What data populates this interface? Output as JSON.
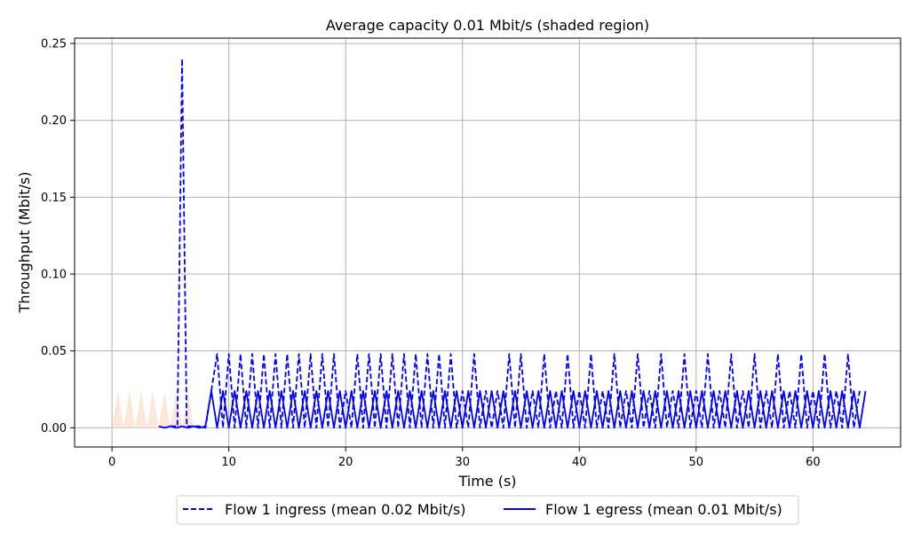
{
  "chart_data": {
    "type": "line",
    "title": "Average capacity 0.01 Mbit/s (shaded region)",
    "xlabel": "Time (s)",
    "ylabel": "Throughput (Mbit/s)",
    "xlim": [
      -3.2,
      67.5
    ],
    "ylim": [
      -0.0125,
      0.2535
    ],
    "xticks": [
      0,
      10,
      20,
      30,
      40,
      50,
      60
    ],
    "yticks": [
      0.0,
      0.05,
      0.1,
      0.15,
      0.2,
      0.25
    ],
    "xtick_labels": [
      "0",
      "10",
      "20",
      "30",
      "40",
      "50",
      "60"
    ],
    "ytick_labels": [
      "0.00",
      "0.05",
      "0.10",
      "0.15",
      "0.20",
      "0.25"
    ],
    "grid": true,
    "legend_position": "bottom-center",
    "colors": {
      "series": "#0000ff",
      "capacity_fill": "#fbe8da",
      "grid": "#b0b0b0"
    },
    "capacity": {
      "x": [
        0,
        0.5,
        1,
        1.5,
        2,
        2.5,
        3,
        3.5,
        4,
        4.5,
        5,
        5.5,
        6,
        6.5,
        7
      ],
      "y": [
        0,
        0.024,
        0,
        0.024,
        0,
        0.024,
        0,
        0.024,
        0,
        0.024,
        0,
        0.024,
        0,
        0.024,
        0
      ]
    },
    "series": [
      {
        "name": "Flow 1 ingress (mean 0.02 Mbit/s)",
        "style": "dashed",
        "x": [
          5.0,
          5.3,
          5.6,
          5.8,
          6.0,
          6.2,
          6.4,
          6.7,
          7.0,
          7.5,
          8.0,
          8.5,
          9.0,
          9.5,
          10.0,
          10.5,
          11.0,
          11.5,
          12.0,
          12.5,
          13.0,
          13.5,
          14.0,
          14.5,
          15.0,
          15.5,
          16.0,
          16.5,
          17.0,
          17.5,
          18.0,
          18.5,
          19.0,
          19.5,
          20.0,
          20.5,
          21.0,
          21.5,
          22.0,
          22.5,
          23.0,
          23.5,
          24.0,
          24.5,
          25.0,
          25.5,
          26.0,
          26.5,
          27.0,
          27.5,
          28.0,
          28.5,
          29.0,
          29.5,
          30.0,
          30.5,
          31.0,
          31.5,
          32.0,
          32.5,
          33.0,
          33.5,
          34.0,
          34.5,
          35.0,
          35.5,
          36.0,
          36.5,
          37.0,
          37.5,
          38.0,
          38.5,
          39.0,
          39.5,
          40.0,
          40.5,
          41.0,
          41.5,
          42.0,
          42.5,
          43.0,
          43.5,
          44.0,
          44.5,
          45.0,
          45.5,
          46.0,
          46.5,
          47.0,
          47.5,
          48.0,
          48.5,
          49.0,
          49.5,
          50.0,
          50.5,
          51.0,
          51.5,
          52.0,
          52.5,
          53.0,
          53.5,
          54.0,
          54.5,
          55.0,
          55.5,
          56.0,
          56.5,
          57.0,
          57.5,
          58.0,
          58.5,
          59.0,
          59.5,
          60.0,
          60.5,
          61.0,
          61.5,
          62.0,
          62.5,
          63.0,
          63.5,
          64.0
        ],
        "y": [
          0.001,
          0.001,
          0.001,
          0.12,
          0.24,
          0.12,
          0.001,
          0.001,
          0.001,
          0.001,
          0.0,
          0.024,
          0.048,
          0.0,
          0.048,
          0.0,
          0.048,
          0.0,
          0.048,
          0.0,
          0.048,
          0.0,
          0.048,
          0.0,
          0.048,
          0.0,
          0.048,
          0.0,
          0.048,
          0.0,
          0.048,
          0.0,
          0.048,
          0.0,
          0.024,
          0.0,
          0.048,
          0.0,
          0.048,
          0.0,
          0.048,
          0.0,
          0.048,
          0.0,
          0.048,
          0.0,
          0.048,
          0.0,
          0.048,
          0.0,
          0.048,
          0.0,
          0.048,
          0.0,
          0.024,
          0.0,
          0.048,
          0.0,
          0.024,
          0.0,
          0.024,
          0.0,
          0.048,
          0.0,
          0.048,
          0.0,
          0.024,
          0.0,
          0.048,
          0.0,
          0.024,
          0.0,
          0.048,
          0.0,
          0.024,
          0.0,
          0.048,
          0.0,
          0.024,
          0.0,
          0.048,
          0.0,
          0.024,
          0.0,
          0.048,
          0.0,
          0.024,
          0.0,
          0.048,
          0.0,
          0.024,
          0.0,
          0.048,
          0.0,
          0.024,
          0.0,
          0.048,
          0.0,
          0.024,
          0.0,
          0.048,
          0.0,
          0.024,
          0.0,
          0.048,
          0.0,
          0.024,
          0.0,
          0.048,
          0.0,
          0.024,
          0.0,
          0.048,
          0.0,
          0.024,
          0.0,
          0.048,
          0.0,
          0.024,
          0.0,
          0.048,
          0.0,
          0.024
        ]
      },
      {
        "name": "Flow 1 egress (mean 0.01 Mbit/s)",
        "style": "solid",
        "x": [
          4.0,
          4.5,
          5.0,
          5.5,
          6.0,
          6.5,
          7.0,
          7.5,
          8.0,
          8.5,
          9.0,
          9.5,
          10.0,
          10.5,
          11.0,
          11.5,
          12.0,
          12.5,
          13.0,
          13.5,
          14.0,
          14.5,
          15.0,
          15.5,
          16.0,
          16.5,
          17.0,
          17.5,
          18.0,
          18.5,
          19.0,
          19.5,
          20.0,
          20.5,
          21.0,
          21.5,
          22.0,
          22.5,
          23.0,
          23.5,
          24.0,
          24.5,
          25.0,
          25.5,
          26.0,
          26.5,
          27.0,
          27.5,
          28.0,
          28.5,
          29.0,
          29.5,
          30.0,
          30.5,
          31.0,
          31.5,
          32.0,
          32.5,
          33.0,
          33.5,
          34.0,
          34.5,
          35.0,
          35.5,
          36.0,
          36.5,
          37.0,
          37.5,
          38.0,
          38.5,
          39.0,
          39.5,
          40.0,
          40.5,
          41.0,
          41.5,
          42.0,
          42.5,
          43.0,
          43.5,
          44.0,
          44.5,
          45.0,
          45.5,
          46.0,
          46.5,
          47.0,
          47.5,
          48.0,
          48.5,
          49.0,
          49.5,
          50.0,
          50.5,
          51.0,
          51.5,
          52.0,
          52.5,
          53.0,
          53.5,
          54.0,
          54.5,
          55.0,
          55.5,
          56.0,
          56.5,
          57.0,
          57.5,
          58.0,
          58.5,
          59.0,
          59.5,
          60.0,
          60.5,
          61.0,
          61.5,
          62.0,
          62.5,
          63.0,
          63.5,
          64.0,
          64.5
        ],
        "y": [
          0.001,
          0.0,
          0.001,
          0.0,
          0.001,
          0.0,
          0.001,
          0.0,
          0.001,
          0.024,
          0.0,
          0.024,
          0.0,
          0.024,
          0.0,
          0.024,
          0.0,
          0.024,
          0.0,
          0.024,
          0.0,
          0.024,
          0.0,
          0.024,
          0.0,
          0.024,
          0.0,
          0.024,
          0.0,
          0.024,
          0.0,
          0.024,
          0.0,
          0.024,
          0.0,
          0.024,
          0.0,
          0.024,
          0.0,
          0.024,
          0.0,
          0.024,
          0.0,
          0.024,
          0.0,
          0.024,
          0.0,
          0.024,
          0.0,
          0.024,
          0.0,
          0.024,
          0.0,
          0.024,
          0.0,
          0.024,
          0.0,
          0.024,
          0.0,
          0.024,
          0.0,
          0.024,
          0.0,
          0.024,
          0.0,
          0.024,
          0.0,
          0.024,
          0.0,
          0.024,
          0.0,
          0.024,
          0.0,
          0.024,
          0.0,
          0.024,
          0.0,
          0.024,
          0.0,
          0.024,
          0.0,
          0.024,
          0.0,
          0.024,
          0.0,
          0.024,
          0.0,
          0.024,
          0.0,
          0.024,
          0.0,
          0.024,
          0.0,
          0.024,
          0.0,
          0.024,
          0.0,
          0.024,
          0.0,
          0.024,
          0.0,
          0.024,
          0.0,
          0.024,
          0.0,
          0.024,
          0.0,
          0.024,
          0.0,
          0.024,
          0.0,
          0.024,
          0.0,
          0.024,
          0.0,
          0.024,
          0.0,
          0.024,
          0.0,
          0.024,
          0.0,
          0.024
        ]
      }
    ]
  }
}
